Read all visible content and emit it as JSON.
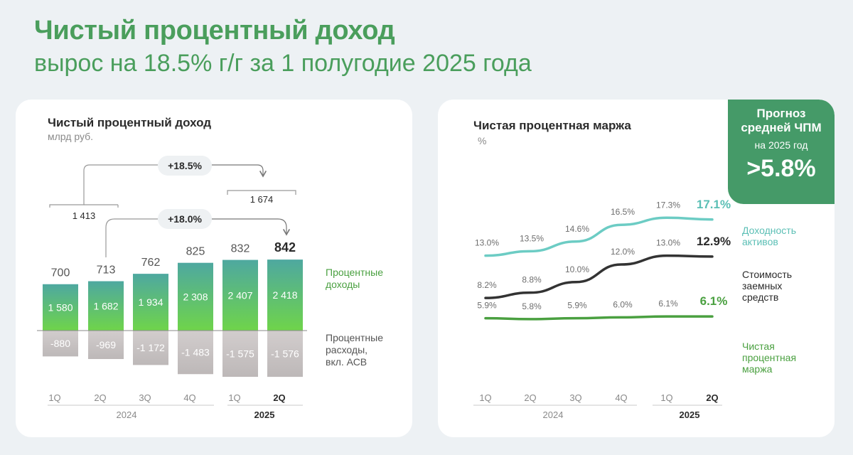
{
  "header": {
    "title": "Чистый процентный доход",
    "subtitle": "вырос на 18.5% г/г за 1 полугодие 2025 года"
  },
  "colors": {
    "accent_green": "#4a9e5c",
    "income_top": "#4ea8a0",
    "income_bottom": "#6fd44a",
    "expense": "#c4c0c0",
    "teal_line": "#6cccc4",
    "dark_line": "#333333",
    "green_line": "#4aa040",
    "forecast_bg": "#459a68"
  },
  "forecast": {
    "title": "Прогноз средней ЧПМ",
    "period": "на 2025 год",
    "value": ">5.8%"
  },
  "chart_data": [
    {
      "type": "bar",
      "title": "Чистый процентный доход",
      "subtitle": "млрд руб.",
      "categories": [
        "1Q",
        "2Q",
        "3Q",
        "4Q",
        "1Q",
        "2Q"
      ],
      "year_groups": [
        {
          "label": "2024",
          "quarters": [
            "1Q",
            "2Q",
            "3Q",
            "4Q"
          ]
        },
        {
          "label": "2025",
          "quarters": [
            "1Q",
            "2Q"
          ]
        }
      ],
      "series": [
        {
          "name": "Процентные доходы",
          "values": [
            1580,
            1682,
            1934,
            2308,
            2407,
            2418
          ],
          "labels": [
            "1 580",
            "1 682",
            "1 934",
            "2 308",
            "2 407",
            "2 418"
          ]
        },
        {
          "name": "Процентные расходы, вкл. АСВ",
          "values": [
            -880,
            -969,
            -1172,
            -1483,
            -1575,
            -1576
          ],
          "labels": [
            "-880",
            "-969",
            "-1 172",
            "-1 483",
            "-1 575",
            "-1 576"
          ]
        }
      ],
      "net_values": [
        700,
        713,
        762,
        825,
        832,
        842
      ],
      "net_labels": [
        "700",
        "713",
        "762",
        "825",
        "832",
        "842"
      ],
      "half_year": {
        "h1_2024": "1 413",
        "h1_2025": "1 674",
        "growth_h1": "+18.5%",
        "growth_2q": "+18.0%"
      }
    },
    {
      "type": "line",
      "title": "Чистая процентная маржа",
      "subtitle": "%",
      "categories": [
        "1Q",
        "2Q",
        "3Q",
        "4Q",
        "1Q",
        "2Q"
      ],
      "year_groups": [
        {
          "label": "2024",
          "quarters": [
            "1Q",
            "2Q",
            "3Q",
            "4Q"
          ]
        },
        {
          "label": "2025",
          "quarters": [
            "1Q",
            "2Q"
          ]
        }
      ],
      "series": [
        {
          "name": "Доходность активов",
          "values": [
            13.0,
            13.5,
            14.6,
            16.5,
            17.3,
            17.1
          ],
          "labels": [
            "13.0%",
            "13.5%",
            "14.6%",
            "16.5%",
            "17.3%",
            "17.1%"
          ]
        },
        {
          "name": "Стоимость заемных средств",
          "values": [
            8.2,
            8.8,
            10.0,
            12.0,
            13.0,
            12.9
          ],
          "labels": [
            "8.2%",
            "8.8%",
            "10.0%",
            "12.0%",
            "13.0%",
            "12.9%"
          ]
        },
        {
          "name": "Чистая процентная маржа",
          "values": [
            5.9,
            5.8,
            5.9,
            6.0,
            6.1,
            6.1
          ],
          "labels": [
            "5.9%",
            "5.8%",
            "5.9%",
            "6.0%",
            "6.1%",
            "6.1%"
          ]
        }
      ]
    }
  ]
}
